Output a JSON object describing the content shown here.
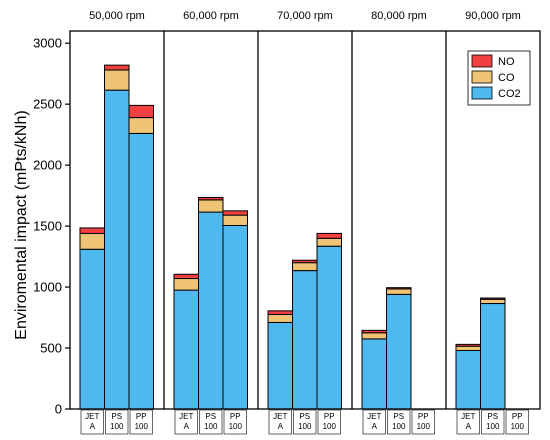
{
  "chart_data": {
    "type": "bar",
    "stacked": true,
    "ylabel": "Enviromental impact (mPts/kNh)",
    "xlabel": "",
    "ylim": [
      0,
      3100
    ],
    "yticks": [
      "0",
      "500",
      "1000",
      "1500",
      "2000",
      "2500",
      "3000"
    ],
    "legend_position": "top-right",
    "colors": {
      "NO": "#f04040",
      "CO": "#f0c476",
      "CO2": "#4fb8ef"
    },
    "series_order_bottom_to_top": [
      "CO2",
      "CO",
      "NO"
    ],
    "legend": [
      {
        "name": "NO"
      },
      {
        "name": "CO"
      },
      {
        "name": "CO2"
      }
    ],
    "panels": [
      {
        "title": "50,000 rpm",
        "categories": [
          [
            "JET",
            "A"
          ],
          [
            "PS",
            "100"
          ],
          [
            "PP",
            "100"
          ]
        ],
        "series": [
          {
            "name": "CO2",
            "values": [
              1310,
              2615,
              2260
            ]
          },
          {
            "name": "CO",
            "values": [
              130,
              165,
              130
            ]
          },
          {
            "name": "NO",
            "values": [
              45,
              40,
              100
            ]
          }
        ]
      },
      {
        "title": "60,000 rpm",
        "categories": [
          [
            "JET",
            "A"
          ],
          [
            "PS",
            "100"
          ],
          [
            "PP",
            "100"
          ]
        ],
        "series": [
          {
            "name": "CO2",
            "values": [
              975,
              1615,
              1505
            ]
          },
          {
            "name": "CO",
            "values": [
              95,
              100,
              85
            ]
          },
          {
            "name": "NO",
            "values": [
              35,
              20,
              35
            ]
          }
        ]
      },
      {
        "title": "70,000 rpm",
        "categories": [
          [
            "JET",
            "A"
          ],
          [
            "PS",
            "100"
          ],
          [
            "PP",
            "100"
          ]
        ],
        "series": [
          {
            "name": "CO2",
            "values": [
              710,
              1135,
              1335
            ]
          },
          {
            "name": "CO",
            "values": [
              65,
              65,
              65
            ]
          },
          {
            "name": "NO",
            "values": [
              30,
              20,
              40
            ]
          }
        ]
      },
      {
        "title": "80,000 rpm",
        "categories": [
          [
            "JET",
            "A"
          ],
          [
            "PS",
            "100"
          ],
          [
            "PP",
            "100"
          ]
        ],
        "series": [
          {
            "name": "CO2",
            "values": [
              575,
              940,
              null
            ]
          },
          {
            "name": "CO",
            "values": [
              50,
              45,
              null
            ]
          },
          {
            "name": "NO",
            "values": [
              20,
              10,
              null
            ]
          }
        ]
      },
      {
        "title": "90,000 rpm",
        "categories": [
          [
            "JET",
            "A"
          ],
          [
            "PS",
            "100"
          ],
          [
            "PP",
            "100"
          ]
        ],
        "series": [
          {
            "name": "CO2",
            "values": [
              480,
              865,
              null
            ]
          },
          {
            "name": "CO",
            "values": [
              35,
              35,
              null
            ]
          },
          {
            "name": "NO",
            "values": [
              15,
              10,
              null
            ]
          }
        ]
      }
    ]
  }
}
